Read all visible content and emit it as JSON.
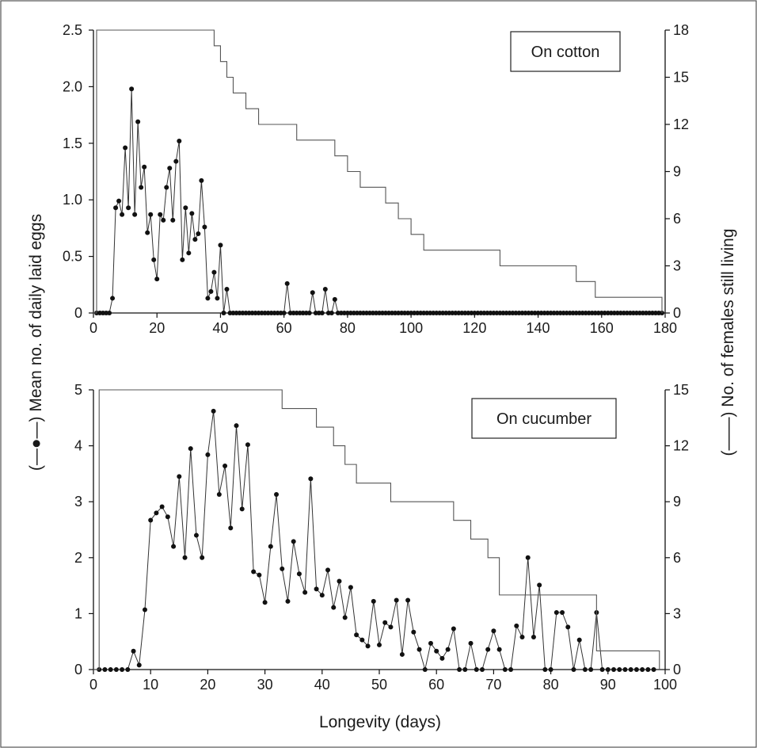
{
  "xlabel": "Longevity (days)",
  "ylabel_left": "(—●—) Mean no. of daily laid eggs",
  "ylabel_right": "(——) No. of females still living",
  "chart_data": [
    {
      "type": "line",
      "label": "On cotton",
      "xlim": [
        0,
        180
      ],
      "xticks": [
        0,
        20,
        40,
        60,
        80,
        100,
        120,
        140,
        160,
        180
      ],
      "ylim_left": [
        0,
        2.5
      ],
      "yticks_left": [
        "0",
        "0.5",
        "1.0",
        "1.5",
        "2.0",
        "2.5"
      ],
      "ylim_right": [
        0,
        18
      ],
      "yticks_right": [
        0,
        3,
        6,
        9,
        12,
        15,
        18
      ],
      "series": [
        {
          "axis": "left",
          "style": "line-with-dots",
          "x": [
            1,
            2,
            3,
            4,
            5,
            6,
            7,
            8,
            9,
            10,
            11,
            12,
            13,
            14,
            15,
            16,
            17,
            18,
            19,
            20,
            21,
            22,
            23,
            24,
            25,
            26,
            27,
            28,
            29,
            30,
            31,
            32,
            33,
            34,
            35,
            36,
            37,
            38,
            39,
            40,
            41,
            42,
            61,
            69,
            73,
            76
          ],
          "y": [
            0,
            0,
            0,
            0,
            0,
            0.13,
            0.93,
            0.99,
            0.87,
            1.46,
            0.93,
            1.98,
            0.87,
            1.69,
            1.11,
            1.29,
            0.71,
            0.87,
            0.47,
            0.3,
            0.87,
            0.82,
            1.11,
            1.28,
            0.82,
            1.34,
            1.52,
            0.47,
            0.93,
            0.53,
            0.88,
            0.65,
            0.7,
            1.17,
            0.76,
            0.13,
            0.19,
            0.36,
            0.13,
            0.6,
            0,
            0.21,
            0.26,
            0.18,
            0.21,
            0.12
          ],
          "zero_days_start": 43,
          "zero_days_end": 179
        },
        {
          "axis": "right",
          "style": "step",
          "x": [
            0,
            1,
            38,
            40,
            42,
            44,
            48,
            52,
            56,
            60,
            64,
            68,
            72,
            76,
            80,
            84,
            88,
            92,
            96,
            100,
            104,
            128,
            152,
            158,
            176,
            179
          ],
          "y": [
            0,
            18,
            17,
            16,
            15,
            14,
            13,
            12,
            12,
            12,
            11,
            11,
            11,
            10,
            9,
            8,
            8,
            7,
            6,
            5,
            4,
            3,
            2,
            1,
            1,
            0
          ]
        }
      ]
    },
    {
      "type": "line",
      "label": "On cucumber",
      "xlim": [
        0,
        100
      ],
      "xticks": [
        0,
        10,
        20,
        30,
        40,
        50,
        60,
        70,
        80,
        90,
        100
      ],
      "ylim_left": [
        0,
        5
      ],
      "yticks_left": [
        0,
        1,
        2,
        3,
        4,
        5
      ],
      "ylim_right": [
        0,
        15
      ],
      "yticks_right": [
        0,
        3,
        6,
        9,
        12,
        15
      ],
      "series": [
        {
          "axis": "left",
          "style": "line-with-dots",
          "x": [
            1,
            2,
            3,
            4,
            5,
            6,
            7,
            8,
            9,
            10,
            11,
            12,
            13,
            14,
            15,
            16,
            17,
            18,
            19,
            20,
            21,
            22,
            23,
            24,
            25,
            26,
            27,
            28,
            29,
            30,
            31,
            32,
            33,
            34,
            35,
            36,
            37,
            38,
            39,
            40,
            41,
            42,
            43,
            44,
            45,
            46,
            47,
            48,
            49,
            50,
            51,
            52,
            53,
            54,
            55,
            56,
            57,
            58,
            59,
            60,
            61,
            62,
            63,
            64,
            65,
            66,
            67,
            68,
            69,
            70,
            71,
            72,
            73,
            74,
            75,
            76,
            77,
            78,
            79,
            80,
            81,
            82,
            83,
            84,
            85,
            86,
            87,
            88,
            89,
            90,
            91,
            92,
            93,
            94,
            95,
            96,
            97,
            98
          ],
          "y": [
            0,
            0,
            0,
            0,
            0,
            0,
            0.33,
            0.08,
            1.07,
            2.67,
            2.8,
            2.91,
            2.73,
            2.2,
            3.45,
            2.0,
            3.95,
            2.4,
            2.0,
            3.84,
            4.62,
            3.13,
            3.64,
            2.53,
            4.36,
            2.87,
            4.02,
            1.75,
            1.69,
            1.2,
            2.2,
            3.13,
            1.8,
            1.22,
            2.29,
            1.71,
            1.38,
            3.41,
            1.44,
            1.33,
            1.78,
            1.11,
            1.58,
            0.93,
            1.47,
            0.62,
            0.53,
            0.42,
            1.22,
            0.44,
            0.84,
            0.76,
            1.24,
            0.27,
            1.24,
            0.67,
            0.36,
            0,
            0.47,
            0.33,
            0.2,
            0.36,
            0.73,
            0,
            0,
            0.47,
            0,
            0,
            0.36,
            0.69,
            0.36,
            0,
            0,
            0.78,
            0.58,
            2.0,
            0.58,
            1.51,
            0,
            0,
            1.02,
            1.02,
            0.76,
            0,
            0.53,
            0,
            0,
            1.02,
            0,
            0,
            0,
            0,
            0,
            0,
            0,
            0,
            0,
            0
          ]
        },
        {
          "axis": "right",
          "style": "step",
          "x": [
            0,
            1,
            33,
            37,
            39,
            42,
            44,
            46,
            52,
            57,
            63,
            66,
            69,
            71,
            87,
            88,
            98,
            99
          ],
          "y": [
            0,
            15,
            14,
            14,
            13,
            12,
            11,
            10,
            9,
            9,
            8,
            7,
            6,
            4,
            4,
            1,
            1,
            0
          ]
        }
      ]
    }
  ]
}
